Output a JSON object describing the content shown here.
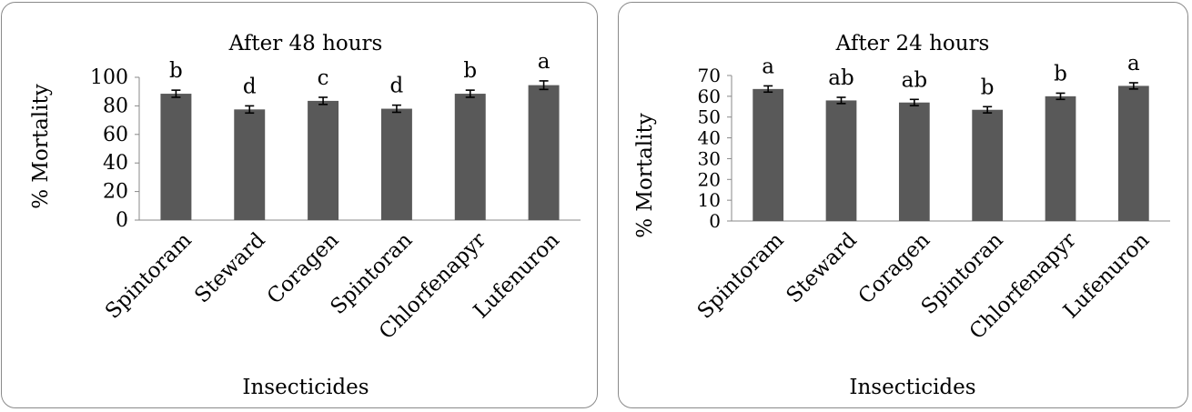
{
  "chart_data": [
    {
      "type": "bar",
      "title": "After 48 hours",
      "xlabel": "Insecticides",
      "ylabel": "% Mortality",
      "ylim": [
        0,
        100
      ],
      "yticks": [
        0,
        20,
        40,
        60,
        80,
        100
      ],
      "categories": [
        "Spintoram",
        "Steward",
        "Coragen",
        "Spintoran",
        "Chlorfenapyr",
        "Lufenuron"
      ],
      "values": [
        88.5,
        77.5,
        83.5,
        78,
        88.5,
        94.5
      ],
      "errors": [
        2.5,
        2.5,
        2.5,
        2.5,
        2.5,
        3
      ],
      "significance_letters": [
        "b",
        "d",
        "c",
        "d",
        "b",
        "a"
      ],
      "grid": false,
      "bar_color": "#595959"
    },
    {
      "type": "bar",
      "title": "After 24 hours",
      "xlabel": "Insecticides",
      "ylabel": "% Mortality",
      "ylim": [
        0,
        70
      ],
      "yticks": [
        0,
        10,
        20,
        30,
        40,
        50,
        60,
        70
      ],
      "categories": [
        "Spintoram",
        "Steward",
        "Coragen",
        "Spintoran",
        "Chlorfenapyr",
        "Lufenuron"
      ],
      "values": [
        63.5,
        58,
        57,
        53.5,
        60,
        65
      ],
      "errors": [
        1.5,
        1.5,
        1.5,
        1.5,
        1.5,
        1.5
      ],
      "significance_letters": [
        "a",
        "ab",
        "ab",
        "b",
        "b",
        "a"
      ],
      "grid": false,
      "bar_color": "#595959"
    }
  ]
}
